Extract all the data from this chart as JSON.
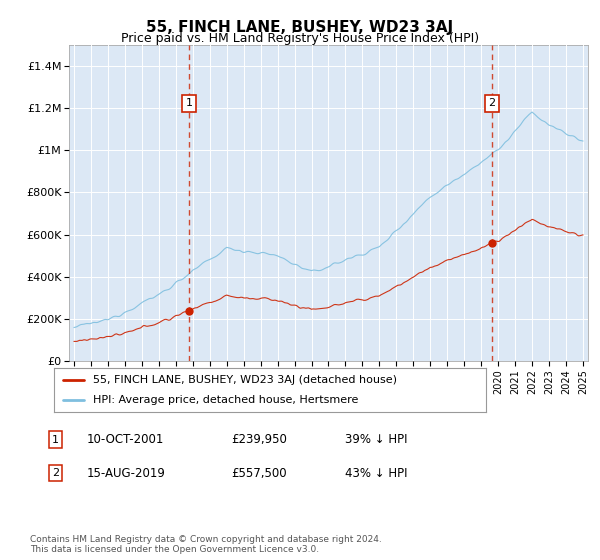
{
  "title": "55, FINCH LANE, BUSHEY, WD23 3AJ",
  "subtitle": "Price paid vs. HM Land Registry's House Price Index (HPI)",
  "plot_bg_color": "#dce8f5",
  "fig_bg_color": "#ffffff",
  "legend_label_red": "55, FINCH LANE, BUSHEY, WD23 3AJ (detached house)",
  "legend_label_blue": "HPI: Average price, detached house, Hertsmere",
  "annotation1_date": "10-OCT-2001",
  "annotation1_price": "£239,950",
  "annotation1_hpi": "39% ↓ HPI",
  "annotation1_year": 2001.79,
  "annotation1_value": 239950,
  "annotation2_date": "15-AUG-2019",
  "annotation2_price": "£557,500",
  "annotation2_hpi": "43% ↓ HPI",
  "annotation2_year": 2019.62,
  "annotation2_value": 557500,
  "footer": "Contains HM Land Registry data © Crown copyright and database right 2024.\nThis data is licensed under the Open Government Licence v3.0.",
  "ylim": [
    0,
    1500000
  ],
  "yticks": [
    0,
    200000,
    400000,
    600000,
    800000,
    1000000,
    1200000,
    1400000
  ],
  "ytick_labels": [
    "£0",
    "£200K",
    "£400K",
    "£600K",
    "£800K",
    "£1M",
    "£1.2M",
    "£1.4M"
  ],
  "xlim_start": 1995,
  "xlim_end": 2025
}
